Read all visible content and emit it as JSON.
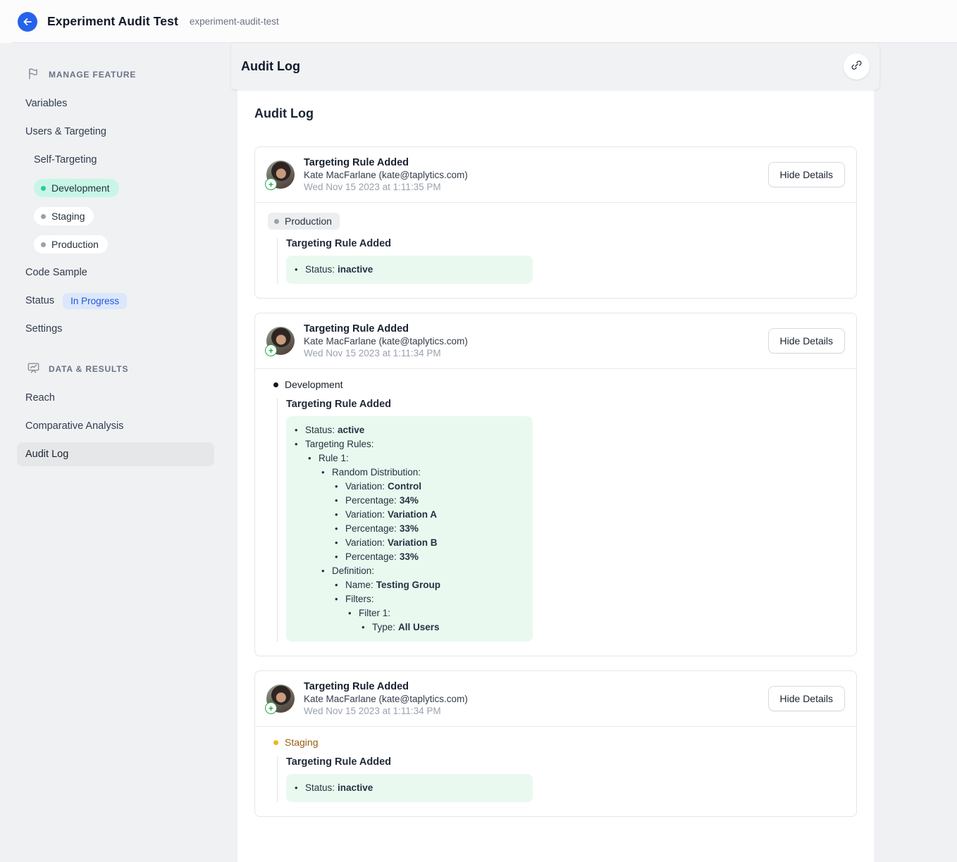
{
  "header": {
    "title": "Experiment Audit Test",
    "slug": "experiment-audit-test",
    "back_icon": "arrow-left"
  },
  "colors": {
    "accent_blue": "#2563eb",
    "badge_blue_bg": "#dbe7fb",
    "badge_blue_text": "#2457d6",
    "env_dev_pill_bg": "#c8f6e6",
    "env_dev_dot": "#2fc7a4",
    "env_gray_dot": "#9aa1ab",
    "staging_text": "#995c12",
    "staging_dot": "#efb521",
    "diff_added_bg": "#e9f9ef"
  },
  "sidebar": {
    "sections": [
      {
        "label": "MANAGE FEATURE",
        "icon": "flag-icon",
        "items": [
          {
            "label": "Variables"
          },
          {
            "label": "Users & Targeting"
          },
          {
            "label": "Self-Targeting"
          },
          {
            "label": "Development"
          },
          {
            "label": "Staging"
          },
          {
            "label": "Production"
          },
          {
            "label": "Code Sample"
          },
          {
            "label": "Status",
            "badge": "In Progress"
          },
          {
            "label": "Settings"
          }
        ]
      },
      {
        "label": "DATA & RESULTS",
        "icon": "chart-board-icon",
        "items": [
          {
            "label": "Reach"
          },
          {
            "label": "Comparative Analysis"
          },
          {
            "label": "Audit Log",
            "active": true
          }
        ]
      }
    ]
  },
  "main": {
    "toolbar_title": "Audit Log",
    "link_icon": "link-icon",
    "panel_title": "Audit Log",
    "entries": [
      {
        "title": "Targeting Rule Added",
        "author": "Kate MacFarlane (kate@taplytics.com)",
        "timestamp": "Wed Nov 15 2023 at 1:11:35 PM",
        "button_label": "Hide Details",
        "environment": "Production",
        "change_title": "Targeting Rule Added",
        "changes": [
          {
            "indent": 1,
            "label": "Status:",
            "value": "inactive"
          }
        ]
      },
      {
        "title": "Targeting Rule Added",
        "author": "Kate MacFarlane (kate@taplytics.com)",
        "timestamp": "Wed Nov 15 2023 at 1:11:34 PM",
        "button_label": "Hide Details",
        "environment": "Development",
        "change_title": "Targeting Rule Added",
        "changes": [
          {
            "indent": 1,
            "label": "Status:",
            "value": "active"
          },
          {
            "indent": 1,
            "label": "Targeting Rules:",
            "value": ""
          },
          {
            "indent": 2,
            "label": "Rule 1:",
            "value": ""
          },
          {
            "indent": 3,
            "label": "Random Distribution:",
            "value": ""
          },
          {
            "indent": 4,
            "label": "Variation:",
            "value": "Control"
          },
          {
            "indent": 4,
            "label": "Percentage:",
            "value": "34%"
          },
          {
            "indent": 4,
            "label": "Variation:",
            "value": "Variation A"
          },
          {
            "indent": 4,
            "label": "Percentage:",
            "value": "33%"
          },
          {
            "indent": 4,
            "label": "Variation:",
            "value": "Variation B"
          },
          {
            "indent": 4,
            "label": "Percentage:",
            "value": "33%"
          },
          {
            "indent": 3,
            "label": "Definition:",
            "value": ""
          },
          {
            "indent": 4,
            "label": "Name:",
            "value": "Testing Group"
          },
          {
            "indent": 4,
            "label": "Filters:",
            "value": ""
          },
          {
            "indent": 5,
            "label": "Filter 1:",
            "value": ""
          },
          {
            "indent": 6,
            "label": "Type:",
            "value": "All Users"
          }
        ]
      },
      {
        "title": "Targeting Rule Added",
        "author": "Kate MacFarlane (kate@taplytics.com)",
        "timestamp": "Wed Nov 15 2023 at 1:11:34 PM",
        "button_label": "Hide Details",
        "environment": "Staging",
        "change_title": "Targeting Rule Added",
        "changes": [
          {
            "indent": 1,
            "label": "Status:",
            "value": "inactive"
          }
        ]
      }
    ]
  }
}
